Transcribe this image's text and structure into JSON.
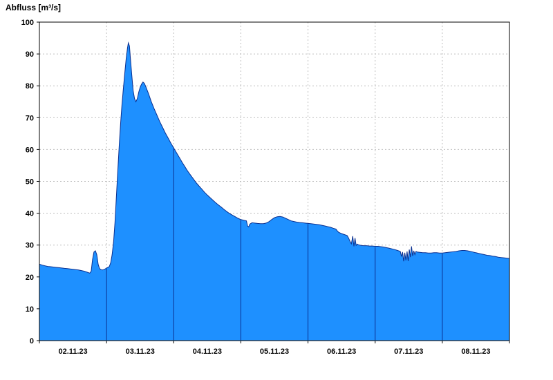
{
  "chart_data": {
    "type": "area",
    "title": "Abfluss [m³/s]",
    "ylabel": "Abfluss [m³/s]",
    "xlabel": "",
    "ylim": [
      0,
      100
    ],
    "y_ticks": [
      0,
      10,
      20,
      30,
      40,
      50,
      60,
      70,
      80,
      90,
      100
    ],
    "x_range_hours": [
      0,
      168
    ],
    "x_tick_labels": [
      "02.11.23",
      "03.11.23",
      "04.11.23",
      "05.11.23",
      "06.11.23",
      "07.11.23",
      "08.11.23"
    ],
    "day_boundaries_hours": [
      24,
      48,
      72,
      96,
      120,
      144
    ],
    "grid": true,
    "legend": "none",
    "colors": {
      "fill": "#1e90ff",
      "line": "#0a2f8f",
      "grid": "#bdbdbd",
      "axis": "#000000",
      "background": "#ffffff"
    },
    "series": [
      {
        "name": "Abfluss",
        "unit": "m³/s",
        "points": [
          [
            0,
            24.0
          ],
          [
            1,
            23.7
          ],
          [
            2,
            23.5
          ],
          [
            3,
            23.3
          ],
          [
            4,
            23.2
          ],
          [
            5,
            23.1
          ],
          [
            6,
            23.0
          ],
          [
            7,
            22.9
          ],
          [
            8,
            22.8
          ],
          [
            9,
            22.7
          ],
          [
            10,
            22.6
          ],
          [
            11,
            22.5
          ],
          [
            12,
            22.4
          ],
          [
            13,
            22.3
          ],
          [
            14,
            22.2
          ],
          [
            15,
            22.0
          ],
          [
            16,
            21.8
          ],
          [
            17,
            21.5
          ],
          [
            18,
            21.2
          ],
          [
            18.5,
            21.8
          ],
          [
            19,
            25.5
          ],
          [
            19.5,
            27.8
          ],
          [
            20,
            28.2
          ],
          [
            20.5,
            27.0
          ],
          [
            21,
            24.0
          ],
          [
            21.5,
            22.6
          ],
          [
            22,
            22.3
          ],
          [
            22.5,
            22.2
          ],
          [
            23,
            22.3
          ],
          [
            23.5,
            22.5
          ],
          [
            24,
            22.8
          ],
          [
            24.5,
            23.0
          ],
          [
            25,
            23.3
          ],
          [
            25.5,
            24.5
          ],
          [
            26,
            27.0
          ],
          [
            26.5,
            31.0
          ],
          [
            27,
            37.0
          ],
          [
            27.5,
            45.0
          ],
          [
            28,
            53.0
          ],
          [
            28.5,
            61.0
          ],
          [
            29,
            68.0
          ],
          [
            29.5,
            74.0
          ],
          [
            30,
            79.0
          ],
          [
            30.5,
            84.0
          ],
          [
            31,
            88.5
          ],
          [
            31.5,
            92.0
          ],
          [
            31.8,
            93.5
          ],
          [
            32.2,
            92.5
          ],
          [
            32.5,
            89.0
          ],
          [
            33,
            83.5
          ],
          [
            33.5,
            78.5
          ],
          [
            34,
            76.0
          ],
          [
            34.5,
            75.0
          ],
          [
            35,
            76.0
          ],
          [
            35.5,
            78.0
          ],
          [
            36,
            79.5
          ],
          [
            36.5,
            80.5
          ],
          [
            37,
            81.2
          ],
          [
            37.5,
            80.8
          ],
          [
            38,
            79.8
          ],
          [
            39,
            77.5
          ],
          [
            40,
            75.0
          ],
          [
            41,
            72.8
          ],
          [
            42,
            70.8
          ],
          [
            43,
            68.8
          ],
          [
            44,
            67.0
          ],
          [
            45,
            65.2
          ],
          [
            46,
            63.6
          ],
          [
            47,
            62.0
          ],
          [
            48,
            60.5
          ],
          [
            49,
            59.0
          ],
          [
            50,
            57.5
          ],
          [
            51,
            56.0
          ],
          [
            52,
            54.6
          ],
          [
            53,
            53.2
          ],
          [
            54,
            52.0
          ],
          [
            55,
            50.8
          ],
          [
            56,
            49.6
          ],
          [
            57,
            48.6
          ],
          [
            58,
            47.6
          ],
          [
            59,
            46.6
          ],
          [
            60,
            45.7
          ],
          [
            61,
            44.9
          ],
          [
            62,
            44.1
          ],
          [
            63,
            43.3
          ],
          [
            64,
            42.6
          ],
          [
            65,
            41.9
          ],
          [
            66,
            41.2
          ],
          [
            67,
            40.5
          ],
          [
            68,
            39.9
          ],
          [
            69,
            39.4
          ],
          [
            70,
            38.9
          ],
          [
            71,
            38.4
          ],
          [
            72,
            38.0
          ],
          [
            73,
            37.8
          ],
          [
            74,
            37.6
          ],
          [
            74.4,
            36.0
          ],
          [
            74.8,
            35.7
          ],
          [
            75.2,
            36.6
          ],
          [
            76,
            37.0
          ],
          [
            77,
            36.9
          ],
          [
            78,
            36.8
          ],
          [
            79,
            36.7
          ],
          [
            80,
            36.7
          ],
          [
            81,
            36.9
          ],
          [
            82,
            37.3
          ],
          [
            83,
            38.0
          ],
          [
            84,
            38.6
          ],
          [
            85,
            38.9
          ],
          [
            86,
            39.0
          ],
          [
            87,
            38.8
          ],
          [
            88,
            38.4
          ],
          [
            89,
            38.0
          ],
          [
            90,
            37.6
          ],
          [
            91,
            37.4
          ],
          [
            92,
            37.2
          ],
          [
            93,
            37.1
          ],
          [
            94,
            37.0
          ],
          [
            95,
            36.9
          ],
          [
            96,
            36.8
          ],
          [
            97,
            36.7
          ],
          [
            98,
            36.6
          ],
          [
            99,
            36.5
          ],
          [
            100,
            36.4
          ],
          [
            101,
            36.2
          ],
          [
            102,
            36.0
          ],
          [
            103,
            35.8
          ],
          [
            104,
            35.6
          ],
          [
            105,
            35.3
          ],
          [
            106,
            35.0
          ],
          [
            106.5,
            34.4
          ],
          [
            107,
            34.0
          ],
          [
            108,
            33.6
          ],
          [
            109,
            33.3
          ],
          [
            110,
            33.0
          ],
          [
            110.5,
            32.2
          ],
          [
            111,
            31.2
          ],
          [
            111.5,
            30.4
          ],
          [
            112,
            32.8
          ],
          [
            112.4,
            29.6
          ],
          [
            112.8,
            32.2
          ],
          [
            113.2,
            29.9
          ],
          [
            113.6,
            30.3
          ],
          [
            114,
            30.1
          ],
          [
            115,
            29.9
          ],
          [
            116,
            29.8
          ],
          [
            117,
            29.8
          ],
          [
            118,
            29.7
          ],
          [
            119,
            29.7
          ],
          [
            120,
            29.6
          ],
          [
            121,
            29.6
          ],
          [
            122,
            29.5
          ],
          [
            123,
            29.4
          ],
          [
            124,
            29.2
          ],
          [
            125,
            29.0
          ],
          [
            126,
            28.8
          ],
          [
            127,
            28.6
          ],
          [
            128,
            28.3
          ],
          [
            129,
            28.0
          ],
          [
            129.4,
            26.4
          ],
          [
            129.8,
            27.8
          ],
          [
            130.2,
            24.9
          ],
          [
            130.6,
            27.6
          ],
          [
            131,
            25.2
          ],
          [
            131.4,
            28.0
          ],
          [
            131.8,
            25.0
          ],
          [
            132.2,
            28.6
          ],
          [
            132.6,
            26.2
          ],
          [
            133,
            29.6
          ],
          [
            133.4,
            26.6
          ],
          [
            133.8,
            28.2
          ],
          [
            134.2,
            27.0
          ],
          [
            134.6,
            28.0
          ],
          [
            135,
            27.8
          ],
          [
            136,
            27.7
          ],
          [
            137,
            27.6
          ],
          [
            138,
            27.6
          ],
          [
            139,
            27.5
          ],
          [
            140,
            27.5
          ],
          [
            141,
            27.6
          ],
          [
            142,
            27.6
          ],
          [
            143,
            27.5
          ],
          [
            144,
            27.5
          ],
          [
            145,
            27.6
          ],
          [
            146,
            27.7
          ],
          [
            147,
            27.8
          ],
          [
            148,
            27.9
          ],
          [
            149,
            28.0
          ],
          [
            150,
            28.2
          ],
          [
            151,
            28.3
          ],
          [
            152,
            28.3
          ],
          [
            153,
            28.2
          ],
          [
            154,
            28.0
          ],
          [
            155,
            27.8
          ],
          [
            156,
            27.6
          ],
          [
            157,
            27.4
          ],
          [
            158,
            27.2
          ],
          [
            159,
            27.0
          ],
          [
            160,
            26.8
          ],
          [
            161,
            26.7
          ],
          [
            162,
            26.5
          ],
          [
            163,
            26.4
          ],
          [
            164,
            26.2
          ],
          [
            165,
            26.1
          ],
          [
            166,
            26.0
          ],
          [
            167,
            25.9
          ],
          [
            168,
            25.8
          ]
        ]
      }
    ]
  }
}
